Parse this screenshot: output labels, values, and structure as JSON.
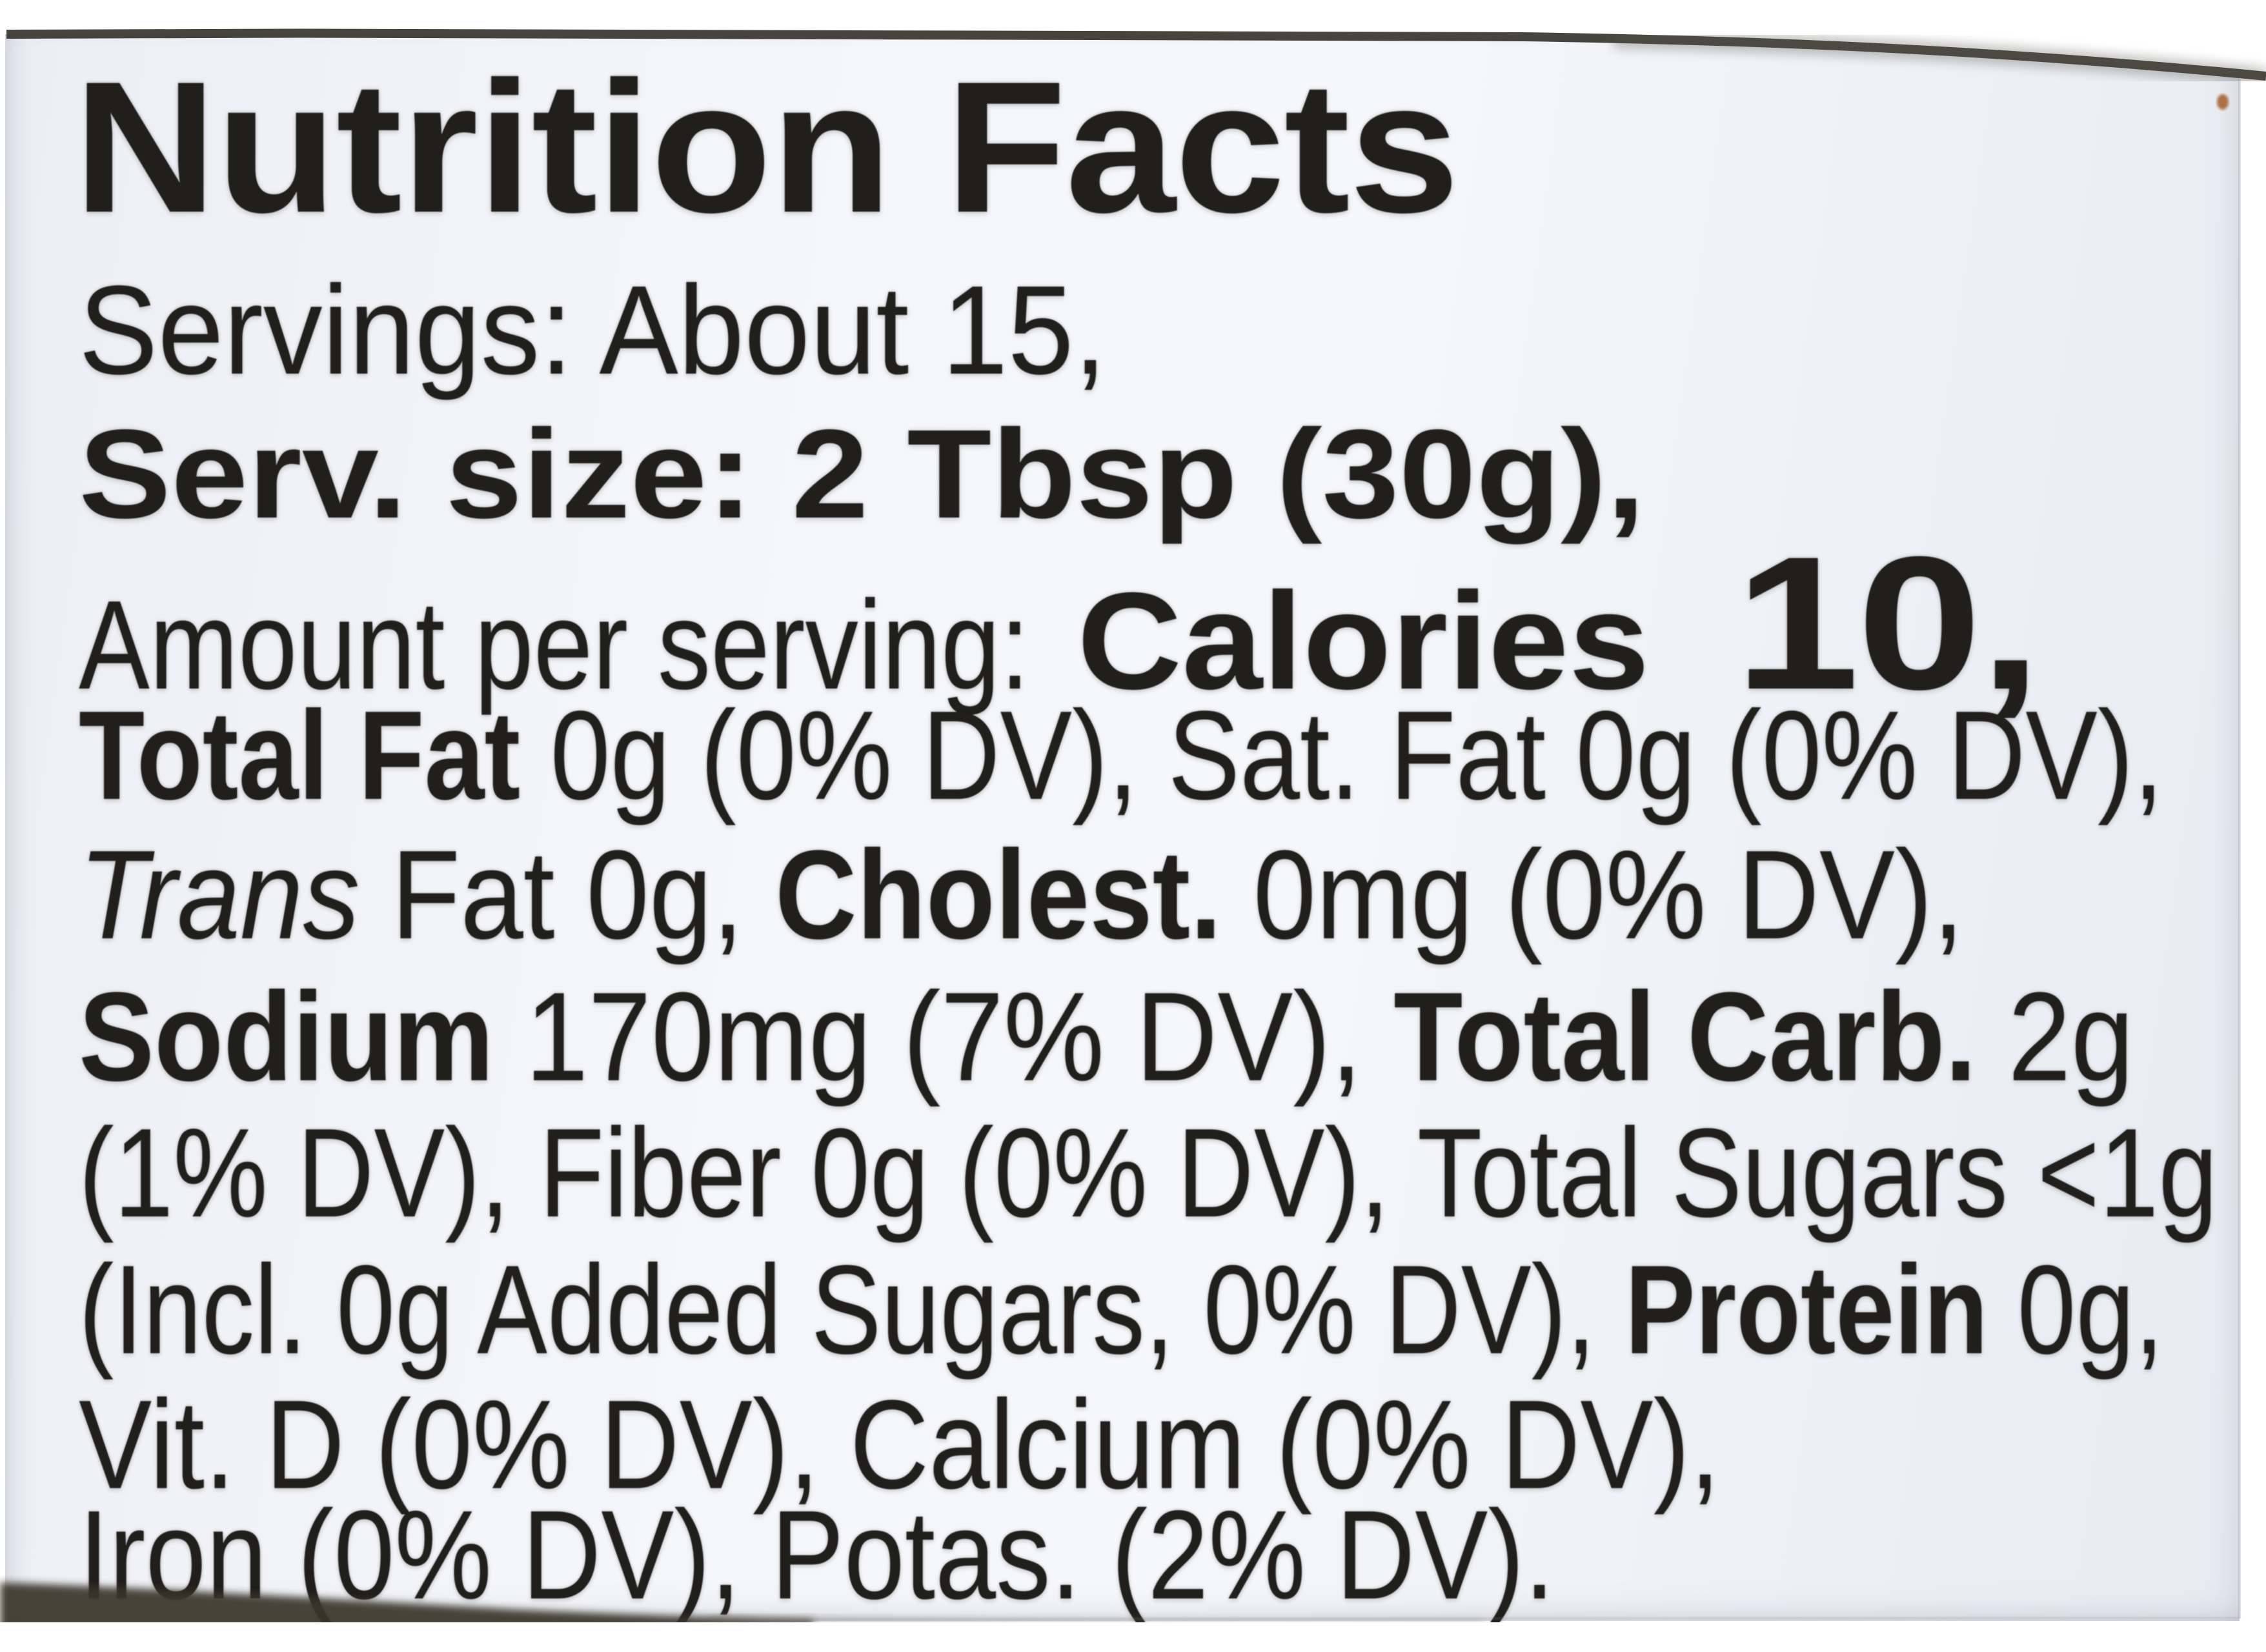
{
  "photo": {
    "page_background": "#ffffff",
    "label_background": "#f3f5fa",
    "text_color": "#211f1c",
    "top_edge_color": "#343029",
    "bottom_shadow_color": "#3a362b",
    "seam_color": "#96a0b4",
    "speck_color": "#a8622f"
  },
  "label": {
    "title": "Nutrition Facts",
    "lines": [
      {
        "name": "title-line",
        "segments": [
          {
            "text": "Nutrition Facts",
            "style": "title"
          }
        ]
      },
      {
        "name": "servings-line",
        "segments": [
          {
            "text": "Servings: About 15,",
            "style": "regular"
          }
        ]
      },
      {
        "name": "serving-size-line",
        "segments": [
          {
            "text": "Serv. size: 2 Tbsp (30g),",
            "style": "bold"
          }
        ]
      },
      {
        "name": "calories-line",
        "segments": [
          {
            "text": "Amount per serving:",
            "style": "regular"
          },
          {
            "text": "Calories",
            "style": "calories-word"
          },
          {
            "text": "10,",
            "style": "calories-value"
          }
        ]
      },
      {
        "name": "fat-line",
        "segments": [
          {
            "text": "Total Fat ",
            "style": "bold"
          },
          {
            "text": "0g (0% DV), Sat. Fat 0g (0% DV),",
            "style": "regular"
          }
        ]
      },
      {
        "name": "cholesterol-line",
        "segments": [
          {
            "text": "Trans ",
            "style": "italic"
          },
          {
            "text": "Fat 0g, ",
            "style": "regular"
          },
          {
            "text": "Cholest. ",
            "style": "bold"
          },
          {
            "text": "0mg (0% DV),",
            "style": "regular"
          }
        ]
      },
      {
        "name": "sodium-carb-line",
        "segments": [
          {
            "text": "Sodium ",
            "style": "bold"
          },
          {
            "text": "170mg (7% DV), ",
            "style": "regular"
          },
          {
            "text": "Total Carb. ",
            "style": "bold"
          },
          {
            "text": "2g",
            "style": "regular"
          }
        ]
      },
      {
        "name": "fiber-sugars-line",
        "segments": [
          {
            "text": "(1% DV), Fiber 0g (0% DV), Total Sugars <1g",
            "style": "regular"
          }
        ]
      },
      {
        "name": "protein-line",
        "segments": [
          {
            "text": "(Incl. 0g Added Sugars, 0% DV), ",
            "style": "regular"
          },
          {
            "text": "Protein ",
            "style": "bold"
          },
          {
            "text": "0g,",
            "style": "regular"
          }
        ]
      },
      {
        "name": "vitamins-line",
        "segments": [
          {
            "text": "Vit. D (0% DV), Calcium (0% DV),",
            "style": "regular"
          }
        ]
      },
      {
        "name": "minerals-line",
        "segments": [
          {
            "text": "Iron (0% DV), Potas. (2% DV).",
            "style": "regular"
          }
        ]
      }
    ],
    "facts": {
      "servings_per_container": "About 15",
      "serving_size": "2 Tbsp (30g)",
      "calories": "10",
      "total_fat": "0g (0% DV)",
      "saturated_fat": "0g (0% DV)",
      "trans_fat": "0g",
      "cholesterol": "0mg (0% DV)",
      "sodium": "170mg (7% DV)",
      "total_carbohydrate": "2g (1% DV)",
      "dietary_fiber": "0g (0% DV)",
      "total_sugars": "<1g",
      "added_sugars": "0g (0% DV)",
      "protein": "0g",
      "vitamin_d": "0% DV",
      "calcium": "0% DV",
      "iron": "0% DV",
      "potassium": "2% DV"
    }
  }
}
